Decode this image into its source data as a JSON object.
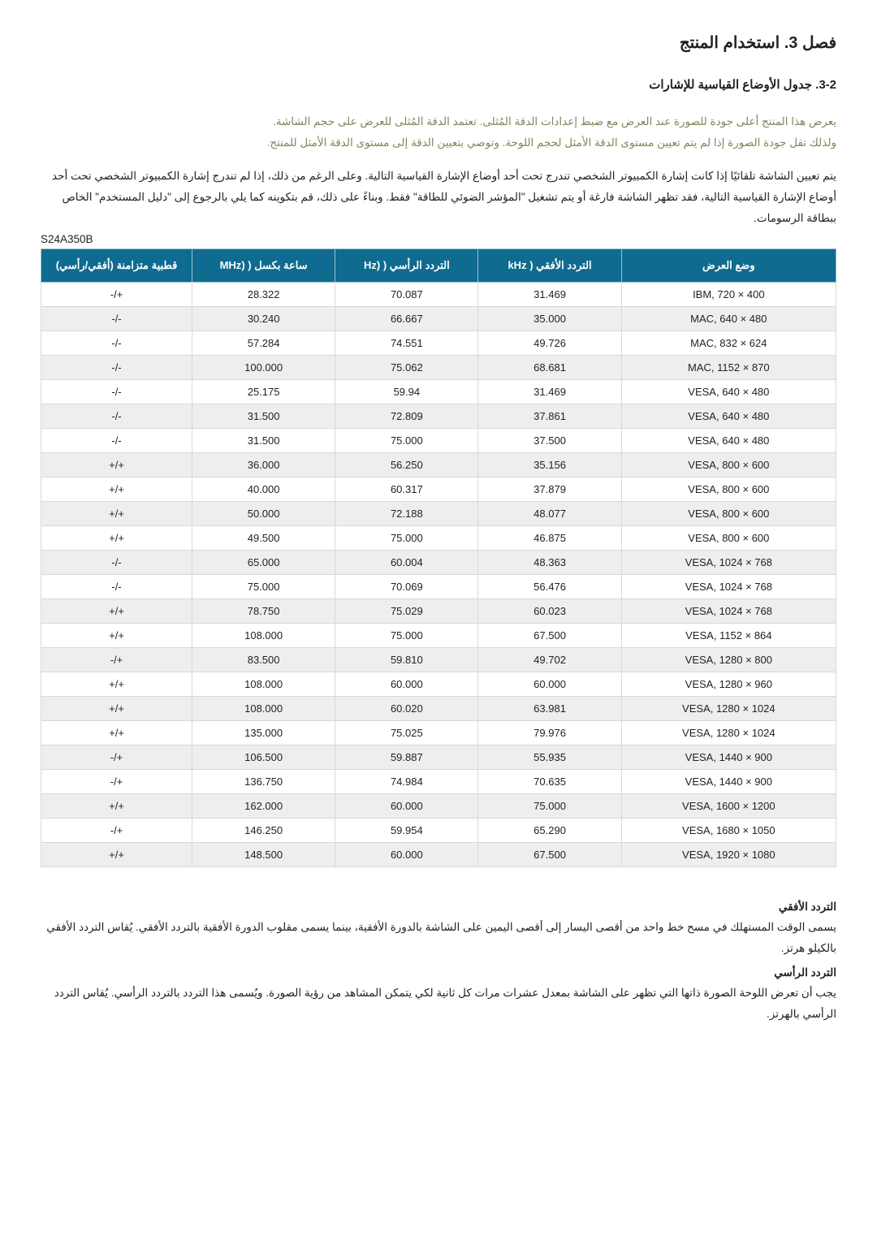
{
  "chapter_title": "فصل 3. استخدام المنتج",
  "section_title": "3-2. جدول الأوضاع القياسية للإشارات",
  "intro_line1": "يعرض هذا المنتج أعلى جودة للصورة عند العرض مع ضبط إعدادات الدقة المُثلى. تعتمد الدقة المُثلى للعرض على حجم الشاشة.",
  "intro_line2": "ولذلك تقل جودة الصورة إذا لم يتم تعيين مستوى الدقة الأمثل لحجم اللوحة. وتوصي بتعيين الدقة إلى مستوى الدقة الأمثل للمنتج.",
  "paragraph": "يتم تعيين الشاشة تلقائيًا إذا كانت إشارة الكمبيوتر الشخصي تندرج تحت أحد أوضاع الإشارة القياسية التالية. وعلى الرغم من ذلك، إذا لم تندرج إشارة الكمبيوتر الشخصي تحت أحد أوضاع الإشارة القياسية التالية، فقد تظهر الشاشة فارغة أو يتم تشغيل \"المؤشر الضوئي للطاقة\" فقط. وبناءً على ذلك، قم بتكوينه كما يلي بالرجوع إلى \"دليل المستخدم\" الخاص ببطاقة الرسومات.",
  "model_code": "S24A350B",
  "table": {
    "headers": {
      "mode": "وضع العرض",
      "hfreq": "التردد الأفقي ( kHz",
      "vfreq": "التردد الرأسي ( (Hz",
      "clock": "ساعة بكسل ( (MHz",
      "polarity": "قطبية متزامنة (أفقي/رأسي)"
    },
    "rows": [
      {
        "mode": "IBM, 720 × 400",
        "h": "31.469",
        "v": "70.087",
        "c": "28.322",
        "p": "-/+"
      },
      {
        "mode": "MAC, 640 × 480",
        "h": "35.000",
        "v": "66.667",
        "c": "30.240",
        "p": "-/-"
      },
      {
        "mode": "MAC, 832 × 624",
        "h": "49.726",
        "v": "74.551",
        "c": "57.284",
        "p": "-/-"
      },
      {
        "mode": "MAC, 1152 × 870",
        "h": "68.681",
        "v": "75.062",
        "c": "100.000",
        "p": "-/-"
      },
      {
        "mode": "VESA, 640 × 480",
        "h": "31.469",
        "v": "59.94",
        "c": "25.175",
        "p": "-/-"
      },
      {
        "mode": "VESA, 640 × 480",
        "h": "37.861",
        "v": "72.809",
        "c": "31.500",
        "p": "-/-"
      },
      {
        "mode": "VESA, 640 × 480",
        "h": "37.500",
        "v": "75.000",
        "c": "31.500",
        "p": "-/-"
      },
      {
        "mode": "VESA, 800 × 600",
        "h": "35.156",
        "v": "56.250",
        "c": "36.000",
        "p": "+/+"
      },
      {
        "mode": "VESA, 800 × 600",
        "h": "37.879",
        "v": "60.317",
        "c": "40.000",
        "p": "+/+"
      },
      {
        "mode": "VESA, 800 × 600",
        "h": "48.077",
        "v": "72.188",
        "c": "50.000",
        "p": "+/+"
      },
      {
        "mode": "VESA, 800 × 600",
        "h": "46.875",
        "v": "75.000",
        "c": "49.500",
        "p": "+/+"
      },
      {
        "mode": "VESA, 1024 × 768",
        "h": "48.363",
        "v": "60.004",
        "c": "65.000",
        "p": "-/-"
      },
      {
        "mode": "VESA, 1024 × 768",
        "h": "56.476",
        "v": "70.069",
        "c": "75.000",
        "p": "-/-"
      },
      {
        "mode": "VESA, 1024 × 768",
        "h": "60.023",
        "v": "75.029",
        "c": "78.750",
        "p": "+/+"
      },
      {
        "mode": "VESA, 1152 × 864",
        "h": "67.500",
        "v": "75.000",
        "c": "108.000",
        "p": "+/+"
      },
      {
        "mode": "VESA, 1280 × 800",
        "h": "49.702",
        "v": "59.810",
        "c": "83.500",
        "p": "-/+"
      },
      {
        "mode": "VESA, 1280 × 960",
        "h": "60.000",
        "v": "60.000",
        "c": "108.000",
        "p": "+/+"
      },
      {
        "mode": "VESA, 1280 × 1024",
        "h": "63.981",
        "v": "60.020",
        "c": "108.000",
        "p": "+/+"
      },
      {
        "mode": "VESA, 1280 × 1024",
        "h": "79.976",
        "v": "75.025",
        "c": "135.000",
        "p": "+/+"
      },
      {
        "mode": "VESA, 1440 × 900",
        "h": "55.935",
        "v": "59.887",
        "c": "106.500",
        "p": "-/+"
      },
      {
        "mode": "VESA, 1440 × 900",
        "h": "70.635",
        "v": "74.984",
        "c": "136.750",
        "p": "-/+"
      },
      {
        "mode": "VESA, 1600 × 1200",
        "h": "75.000",
        "v": "60.000",
        "c": "162.000",
        "p": "+/+"
      },
      {
        "mode": "VESA, 1680 × 1050",
        "h": "65.290",
        "v": "59.954",
        "c": "146.250",
        "p": "-/+"
      },
      {
        "mode": "VESA, 1920 × 1080",
        "h": "67.500",
        "v": "60.000",
        "c": "148.500",
        "p": "+/+"
      }
    ]
  },
  "defs": {
    "hfreq_title": "التردد الأفقي",
    "hfreq_body": "يسمى الوقت المستهلك في مسح خط واحد من أقصى اليسار إلى أقصى اليمين على الشاشة بالدورة الأفقية، بينما يسمى مقلوب الدورة الأفقية بالتردد الأفقي. يُقاس التردد الأفقي بالكيلو هرتز.",
    "vfreq_title": "التردد الرأسي",
    "vfreq_body": "يجب أن تعرض اللوحة الصورة ذاتها التي تظهر على الشاشة بمعدل عشرات مرات كل ثانية لكي يتمكن المشاهد من رؤية الصورة. ويُسمى هذا التردد بالتردد الرأسي. يُقاس التردد الرأسي بالهرتز."
  }
}
